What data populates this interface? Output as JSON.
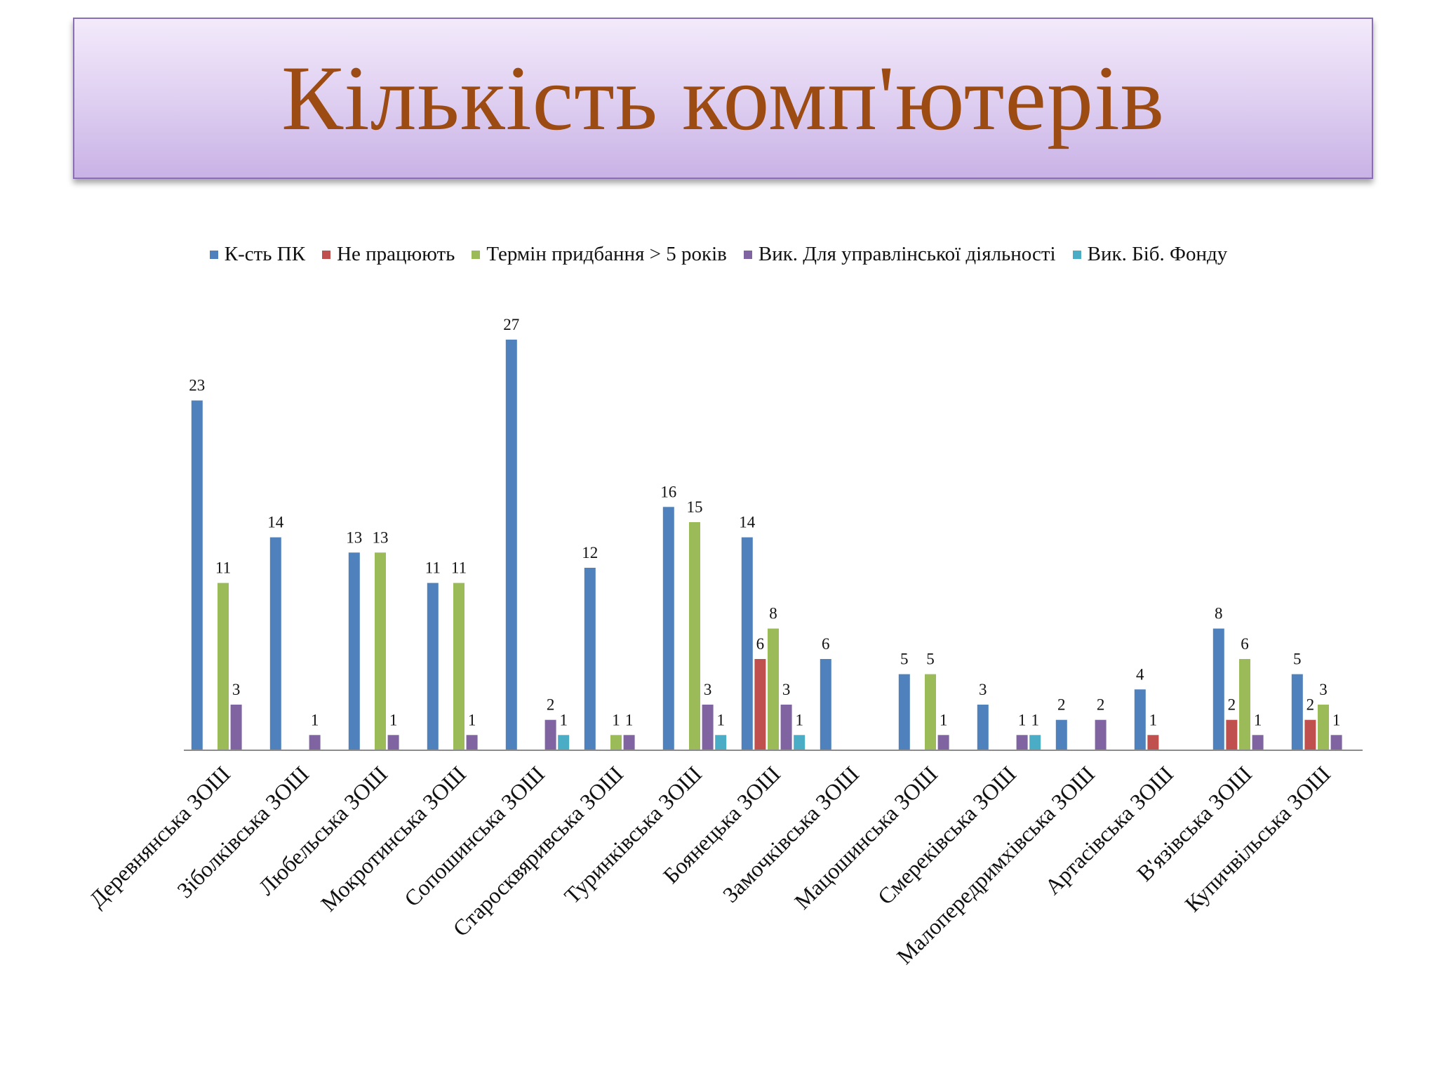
{
  "title": "Кількість комп'ютерів",
  "chart_data": {
    "type": "bar",
    "title": "",
    "xlabel": "",
    "ylabel": "",
    "ylim": [
      0,
      30
    ],
    "grid": false,
    "legend_position": "top",
    "categories": [
      "Деревнянська ЗОШ",
      "Зіболківська ЗОШ",
      "Любельська ЗОШ",
      "Мокротинська ЗОШ",
      "Сопошинська ЗОШ",
      "Старосквяривська ЗОШ",
      "Туринківська ЗОШ",
      "Боянецька ЗОШ",
      "Замочківська ЗОШ",
      "Мацошинська ЗОШ",
      "Смереківська ЗОШ",
      "Малопередримхівська ЗОШ",
      "Артасівська ЗОШ",
      "В'язівська ЗОШ",
      "Купичвільська ЗОШ"
    ],
    "series": [
      {
        "name": "К-сть ПК",
        "color": "#4f81bd",
        "values": [
          23,
          14,
          13,
          11,
          27,
          12,
          16,
          14,
          6,
          5,
          3,
          2,
          4,
          8,
          5
        ]
      },
      {
        "name": "Не працюють",
        "color": "#c0504d",
        "values": [
          null,
          null,
          null,
          null,
          null,
          null,
          null,
          6,
          null,
          null,
          null,
          null,
          1,
          2,
          2
        ]
      },
      {
        "name": "Термін придбання > 5 років",
        "color": "#9bbb59",
        "values": [
          11,
          null,
          13,
          11,
          null,
          1,
          15,
          8,
          null,
          5,
          null,
          null,
          null,
          6,
          3
        ]
      },
      {
        "name": "Вик. Для управлінської діяльності",
        "color": "#8064a2",
        "values": [
          3,
          1,
          1,
          1,
          2,
          1,
          3,
          3,
          null,
          1,
          1,
          2,
          null,
          1,
          1
        ]
      },
      {
        "name": "Вик. Біб. Фонду",
        "color": "#4bacc6",
        "values": [
          null,
          null,
          null,
          null,
          1,
          null,
          1,
          1,
          null,
          null,
          1,
          null,
          null,
          null,
          null
        ]
      }
    ]
  }
}
